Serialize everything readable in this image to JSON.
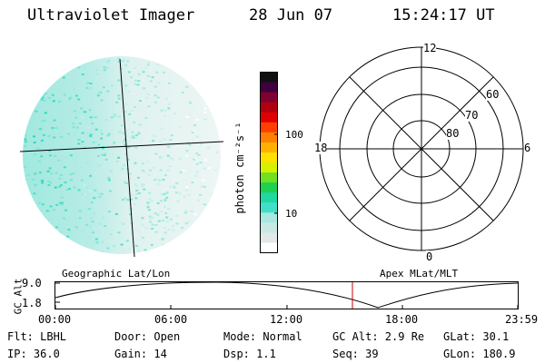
{
  "header": {
    "title": "Ultraviolet Imager",
    "date": "28 Jun 07",
    "time": "15:24:17 UT"
  },
  "colorbar": {
    "unit_label": "photon cm⁻²s⁻¹",
    "ticks": [
      "100",
      "10"
    ],
    "colors": [
      "#ffffff",
      "#e0e8e8",
      "#c8e8e4",
      "#a8e8e0",
      "#40e0c8",
      "#20d8a0",
      "#20d050",
      "#70e020",
      "#d8f000",
      "#ffe000",
      "#ffb000",
      "#ff8000",
      "#ff4000",
      "#e00000",
      "#b00010",
      "#800030",
      "#400040",
      "#101010"
    ]
  },
  "polar": {
    "mlt_labels": [
      "12",
      "18",
      "6",
      "0"
    ],
    "lat_labels": [
      "60",
      "70",
      "80"
    ]
  },
  "altplot": {
    "yaxis_label": "GC Alt",
    "ytick_top": "9.0",
    "ytick_bottom": "1.8",
    "left_title": "Geographic Lat/Lon",
    "right_title": "Apex MLat/MLT",
    "xticks": [
      "00:00",
      "06:00",
      "12:00",
      "18:00",
      "23:59"
    ],
    "marker_color": "#cc0000"
  },
  "info": {
    "row1": {
      "flt": "Flt: LBHL",
      "door": "Door: Open",
      "mode": "Mode: Normal",
      "gcalt": "GC Alt: 2.9 Re",
      "glat": "GLat:  30.1"
    },
    "row2": {
      "ip": "IP: 36.0",
      "gain": "Gain: 14",
      "dsp": "Dsp:   1.1",
      "seq": "Seq: 39",
      "glon": "GLon: 180.9"
    }
  }
}
